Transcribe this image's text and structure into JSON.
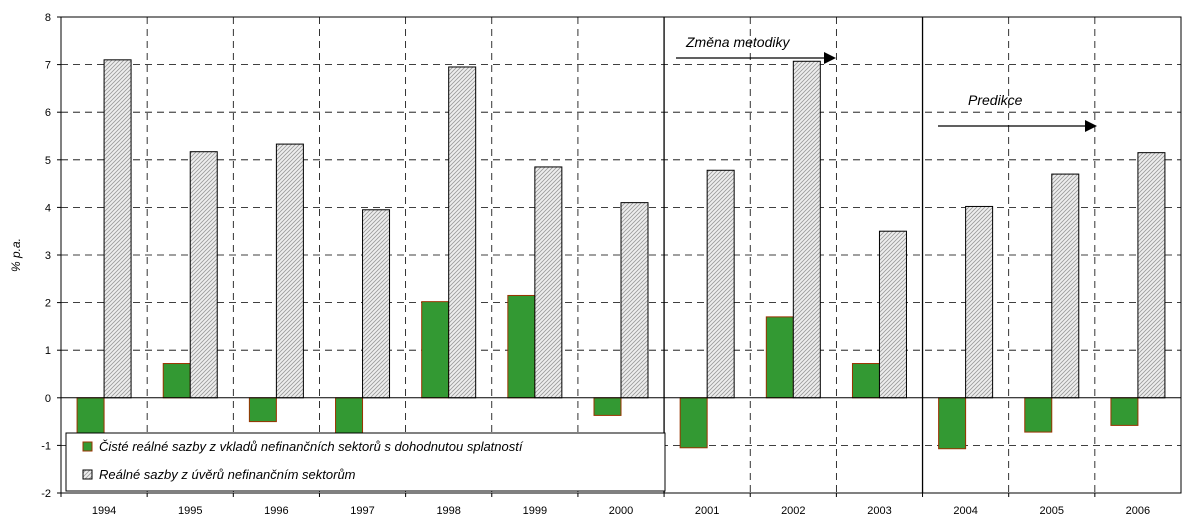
{
  "chart_data": {
    "type": "bar",
    "categories": [
      "1994",
      "1995",
      "1996",
      "1997",
      "1998",
      "1999",
      "2000",
      "2001",
      "2002",
      "2003",
      "2004",
      "2005",
      "2006"
    ],
    "series": [
      {
        "name": "Čisté reálné sazby z vkladů nefinančních sektorů s dohodnutou splatností",
        "values": [
          -0.8,
          0.72,
          -0.5,
          -0.8,
          2.02,
          2.15,
          -0.37,
          -1.05,
          1.7,
          0.72,
          -1.07,
          -0.72,
          -0.58
        ],
        "fill": "#339933",
        "stroke": "#993300"
      },
      {
        "name": "Reálné sazby z úvěrů nefinančním sektorům",
        "values": [
          7.1,
          5.17,
          5.33,
          3.95,
          6.95,
          4.85,
          4.1,
          4.78,
          7.07,
          3.5,
          4.02,
          4.7,
          5.15
        ],
        "fill": "#eeeeee",
        "stroke": "#000000"
      }
    ],
    "ylabel": "% p.a.",
    "xlabel": "",
    "ylim": [
      -2,
      8
    ],
    "yticks": [
      -2,
      -1,
      0,
      1,
      2,
      3,
      4,
      5,
      6,
      7,
      8
    ],
    "grid": "dashed",
    "legend_position": "bottom-left",
    "annotations": [
      {
        "text": "Změna metodiky",
        "from_category": "2001",
        "to_category": "2002"
      },
      {
        "text": "Predikce",
        "from_category": "2004",
        "to_category": "2005"
      }
    ],
    "separators_before": [
      "2001",
      "2004"
    ]
  }
}
